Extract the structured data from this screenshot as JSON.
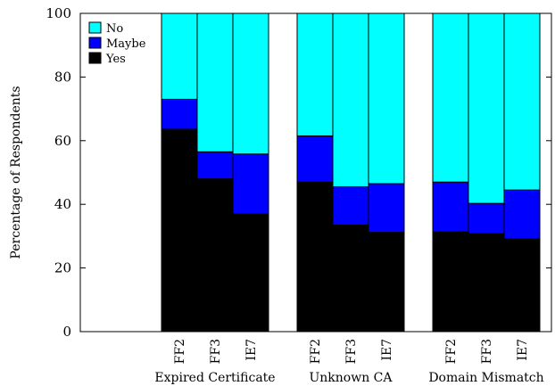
{
  "chart_data": {
    "type": "bar",
    "stacked": true,
    "ylabel": "Percentage of Respondents",
    "xlabel": "",
    "ylim": [
      0,
      100
    ],
    "yticks": [
      0,
      20,
      40,
      60,
      80,
      100
    ],
    "legend_position": "top-left",
    "groups": [
      {
        "name": "Expired Certificate",
        "categories": [
          "FF2",
          "FF3",
          "IE7"
        ]
      },
      {
        "name": "Unknown CA",
        "categories": [
          "FF2",
          "FF3",
          "IE7"
        ]
      },
      {
        "name": "Domain Mismatch",
        "categories": [
          "FF2",
          "FF3",
          "IE7"
        ]
      }
    ],
    "series": [
      {
        "name": "Yes",
        "color": "#000000",
        "values": [
          63.6,
          48.0,
          37.0,
          47.0,
          33.5,
          31.2,
          31.4,
          30.8,
          29.2
        ]
      },
      {
        "name": "Maybe",
        "color": "#0000ff",
        "values": [
          9.4,
          8.5,
          18.8,
          14.5,
          12.0,
          15.3,
          15.6,
          9.5,
          15.3
        ]
      },
      {
        "name": "No",
        "color": "#00ffff",
        "values": [
          27.0,
          43.5,
          44.2,
          38.5,
          54.5,
          53.5,
          53.0,
          59.7,
          55.5
        ]
      }
    ],
    "legend_order": [
      "No",
      "Maybe",
      "Yes"
    ]
  }
}
